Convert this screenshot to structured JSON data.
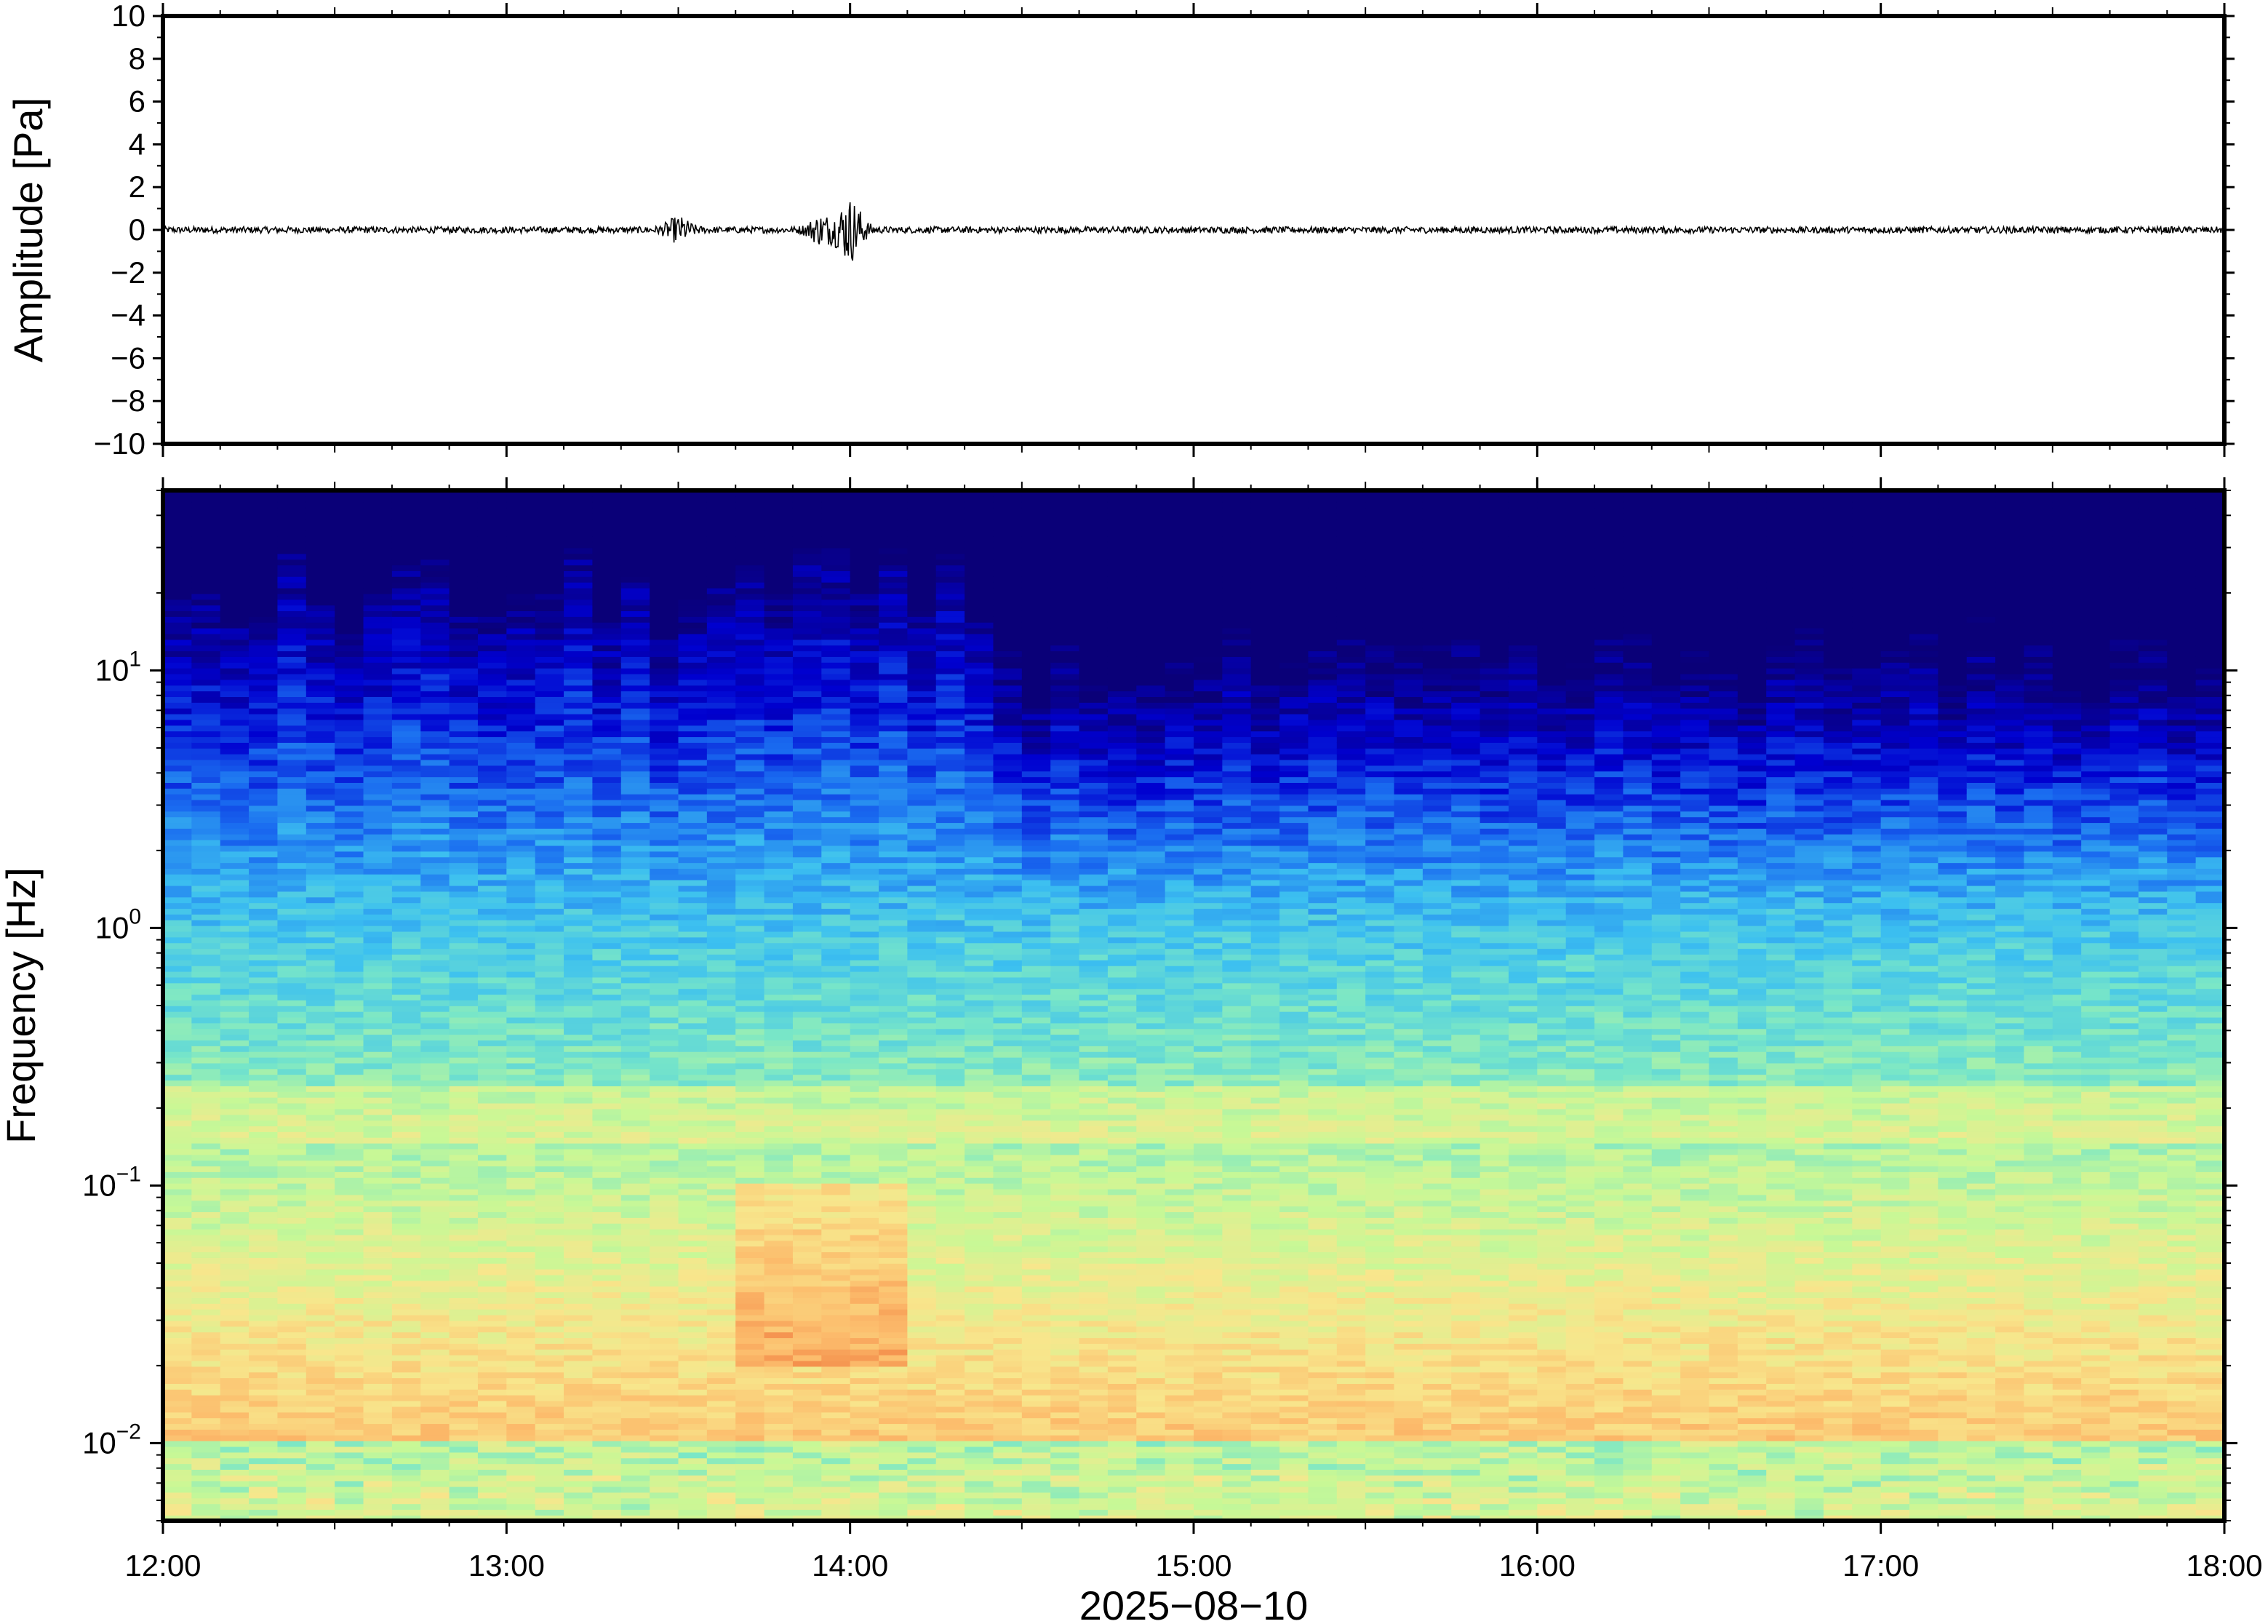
{
  "chart_data": [
    {
      "type": "line",
      "panel": "waveform",
      "ylabel": "Amplitude [Pa]",
      "ylim": [
        -10,
        10
      ],
      "yticks": [
        10,
        8,
        6,
        4,
        2,
        0,
        -2,
        -4,
        -6,
        -8,
        -10
      ],
      "ytick_labels": [
        "10",
        "8",
        "6",
        "4",
        "2",
        "0",
        "−2",
        "−4",
        "−6",
        "−8",
        "−10"
      ],
      "xlim": [
        "12:00",
        "18:00"
      ],
      "series": [
        {
          "color": "#000000",
          "baseline": 0,
          "noise_amplitude": 0.15,
          "events": [
            {
              "time": "13:30",
              "peak_amplitude": 0.5
            },
            {
              "time": "13:55",
              "peak_amplitude": 0.6
            },
            {
              "time": "14:00",
              "peak_amplitude": 1.4
            }
          ]
        }
      ]
    },
    {
      "type": "heatmap",
      "panel": "spectrogram",
      "ylabel": "Frequency [Hz]",
      "yscale": "log",
      "ylim": [
        0.005,
        50
      ],
      "yticks": [
        {
          "base": "10",
          "exp": "1"
        },
        {
          "base": "10",
          "exp": "0"
        },
        {
          "base": "10",
          "exp": "−1"
        },
        {
          "base": "10",
          "exp": "−2"
        }
      ],
      "xlabel": "2025−08−10",
      "xticks": [
        "12:00",
        "13:00",
        "14:00",
        "15:00",
        "16:00",
        "17:00",
        "18:00"
      ],
      "colormap": "jet",
      "colormap_stops": [
        "#0a0078",
        "#0000d0",
        "#1a6cf0",
        "#3cc0f0",
        "#78e6c8",
        "#c8f896",
        "#f8e68c",
        "#fcbc6c",
        "#f0783c"
      ],
      "high_energy_band_hz": [
        0.15,
        0.25
      ],
      "peak_event": {
        "time": "13:55",
        "frequency_range_hz": [
          0.02,
          0.1
        ]
      },
      "time_bins": 72
    }
  ]
}
